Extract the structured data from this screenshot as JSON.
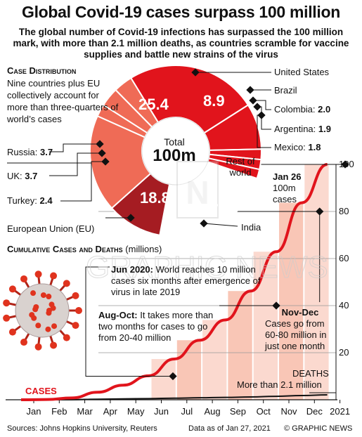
{
  "title": "Global Covid-19 cases surpass 100 million",
  "subtitle": "The global number of Covid-19 infections has surpassed the 100 million mark, with more than 2.1 million deaths, as countries scramble for vaccine supplies and battle new strains of the virus",
  "colors": {
    "red": "#e1141c",
    "dark_red": "#a51c22",
    "salmon": "#ef6b56",
    "pink": "#f6a690",
    "grey": "#c8c8c8",
    "band": "#fbd2c6"
  },
  "distribution": {
    "heading": "Case Distribution",
    "text": "Nine countries plus EU collectively account for more than three-quarters of world’s cases",
    "center_label": "Total",
    "center_value": "100m",
    "rest_label": "Rest of world",
    "slices": [
      {
        "name": "United States",
        "value": 25.4,
        "value_label": "25.4",
        "color": "#e1141c"
      },
      {
        "name": "Brazil",
        "value": 8.9,
        "value_label": "8.9",
        "color": "#e1141c"
      },
      {
        "name": "Colombia:",
        "value": 2.0,
        "value_label": "2.0",
        "color": "#e1141c"
      },
      {
        "name": "Argentina:",
        "value": 1.9,
        "value_label": "1.9",
        "color": "#e1141c"
      },
      {
        "name": "Mexico:",
        "value": 1.8,
        "value_label": "1.8",
        "color": "#e1141c"
      },
      {
        "name": "Rest of world",
        "value": 23.4,
        "value_label": "",
        "color": "#ffffff"
      },
      {
        "name": "India",
        "value": 10.7,
        "value_label": "10.7",
        "color": "#a51c22"
      },
      {
        "name": "European Union (EU)",
        "value": 18.8,
        "value_label": "18.8",
        "color": "#ef6b56"
      },
      {
        "name": "Turkey:",
        "value": 2.4,
        "value_label": "2.4",
        "color": "#ef6b56"
      },
      {
        "name": "UK:",
        "value": 3.7,
        "value_label": "3.7",
        "color": "#ef6b56"
      },
      {
        "name": "Russia:",
        "value": 3.7,
        "value_label": "3.7",
        "color": "#ef6b56"
      }
    ]
  },
  "cumulative": {
    "heading": "Cumulative Cases and Deaths",
    "heading_unit": "(millions)",
    "cases_label": "CASES",
    "deaths_label": "DEATHS",
    "deaths_text": "More than 2.1 million",
    "jan26_label": "Jan 26",
    "jan26_text": "100m cases",
    "jun_title": "Jun 2020:",
    "jun_text": "World reaches 10 million cases six months after emergence of virus in late 2019",
    "augoct_title": "Aug-Oct:",
    "augoct_text": "It takes more than two months for cases to go from 20-40 million",
    "novdec_title": "Nov-Dec",
    "novdec_text": "Cases go from 60-80 million in just one month"
  },
  "chart_data": {
    "type": "line",
    "x": [
      "Jan",
      "Feb",
      "Mar",
      "Apr",
      "May",
      "Jun",
      "Jul",
      "Aug",
      "Sep",
      "Oct",
      "Nov",
      "Dec",
      "2021"
    ],
    "series": [
      {
        "name": "CASES",
        "values": [
          0,
          0.1,
          0.8,
          3.2,
          6.2,
          10.2,
          17.3,
          25.3,
          33.9,
          46.2,
          62.9,
          83.7,
          100
        ]
      },
      {
        "name": "DEATHS",
        "values": [
          0,
          0,
          0.04,
          0.23,
          0.37,
          0.5,
          0.67,
          0.84,
          1.0,
          1.2,
          1.46,
          1.8,
          2.1
        ]
      }
    ],
    "yticks": [
      20,
      40,
      60,
      80,
      100
    ],
    "ylim": [
      0,
      100
    ],
    "markers": [
      {
        "x": 5.95,
        "y": 10
      },
      {
        "x": 10.0,
        "y": 40
      },
      {
        "x": 11.7,
        "y": 80
      },
      {
        "x": 12.7,
        "y": 100
      }
    ]
  },
  "footer": {
    "sources": "Sources: Johns Hopkins University, Reuters",
    "data_date": "Data as of Jan 27, 2021",
    "credit": "© GRAPHIC NEWS"
  }
}
